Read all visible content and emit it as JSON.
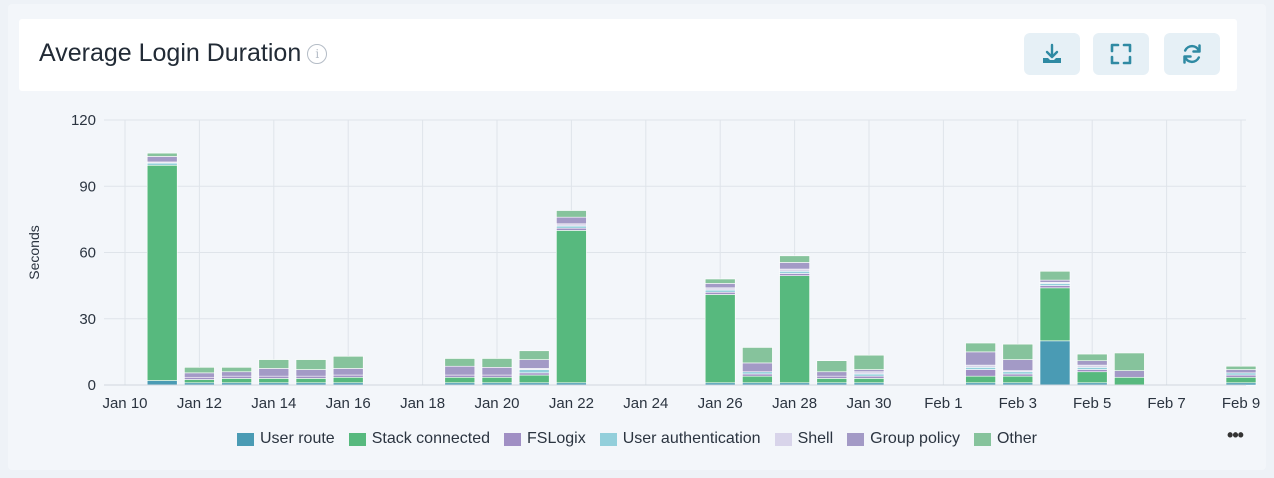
{
  "header": {
    "title": "Average Login Duration",
    "info_icon": "info-icon",
    "buttons": [
      {
        "name": "download-button",
        "icon": "download-icon"
      },
      {
        "name": "fullscreen-button",
        "icon": "expand-icon"
      },
      {
        "name": "refresh-button",
        "icon": "refresh-icon"
      }
    ]
  },
  "legend_more": "•••",
  "chart_data": {
    "type": "bar",
    "stacked": true,
    "ylabel": "Seconds",
    "ylim": [
      0,
      120
    ],
    "yticks": [
      0,
      30,
      60,
      90,
      120
    ],
    "grid": true,
    "legend_position": "bottom",
    "x_tick_labels": [
      "Jan 10",
      "Jan 12",
      "Jan 14",
      "Jan 16",
      "Jan 18",
      "Jan 20",
      "Jan 22",
      "Jan 24",
      "Jan 26",
      "Jan 28",
      "Jan 30",
      "Feb 1",
      "Feb 3",
      "Feb 5",
      "Feb 7",
      "Feb 9"
    ],
    "categories": [
      "Jan 10",
      "Jan 11",
      "Jan 12",
      "Jan 13",
      "Jan 14",
      "Jan 15",
      "Jan 16",
      "Jan 17",
      "Jan 18",
      "Jan 19",
      "Jan 20",
      "Jan 21",
      "Jan 22",
      "Jan 23",
      "Jan 24",
      "Jan 25",
      "Jan 26",
      "Jan 27",
      "Jan 28",
      "Jan 29",
      "Jan 30",
      "Jan 31",
      "Feb 1",
      "Feb 2",
      "Feb 3",
      "Feb 4",
      "Feb 5",
      "Feb 6",
      "Feb 7",
      "Feb 8",
      "Feb 9"
    ],
    "series": [
      {
        "name": "User route",
        "color": "#4a9bb4",
        "values": [
          0,
          2,
          1,
          1,
          1,
          1,
          1,
          0,
          0,
          1,
          1,
          1,
          1,
          0,
          0,
          0,
          1,
          1,
          1,
          1,
          1,
          0,
          0,
          1,
          1,
          20,
          1,
          0,
          0,
          0,
          1
        ]
      },
      {
        "name": "Stack connected",
        "color": "#57b97e",
        "values": [
          0,
          97.5,
          1.5,
          2,
          2,
          2,
          2.5,
          0,
          0,
          2.5,
          2.5,
          3.5,
          69,
          0,
          0,
          0,
          40,
          3,
          48.5,
          2,
          2,
          0,
          0,
          3,
          3,
          24,
          5,
          3.5,
          0,
          0,
          2.5
        ]
      },
      {
        "name": "FSLogix",
        "color": "#a08fc4",
        "values": [
          0,
          0,
          1,
          1,
          1,
          1,
          1,
          0,
          0,
          1,
          1,
          1,
          1,
          0,
          0,
          0,
          1,
          1,
          1,
          1,
          1,
          0,
          0,
          3,
          1,
          1,
          1,
          0,
          0,
          0,
          1
        ]
      },
      {
        "name": "User authentication",
        "color": "#93cfdb",
        "values": [
          0,
          1,
          0,
          0,
          0,
          0,
          0,
          0,
          0,
          0,
          0,
          1.5,
          1,
          0,
          0,
          0,
          1,
          1,
          1,
          0,
          1,
          0,
          0,
          1,
          1,
          1,
          1,
          0,
          0,
          0,
          1
        ]
      },
      {
        "name": "Shell",
        "color": "#d8d4ea",
        "values": [
          0,
          0.5,
          0,
          0,
          0,
          0,
          0,
          0,
          0,
          0,
          0,
          0.5,
          1,
          0,
          0,
          0,
          1,
          0,
          1,
          0,
          1,
          0,
          0,
          1,
          0.5,
          0.5,
          1,
          0,
          0,
          0,
          0
        ]
      },
      {
        "name": "Group policy",
        "color": "#a39ac6",
        "values": [
          0,
          2.5,
          2,
          2,
          3.5,
          3,
          3,
          0,
          0,
          4,
          3.5,
          4,
          3,
          0,
          0,
          0,
          2,
          4,
          3,
          2,
          1,
          0,
          0,
          6,
          5,
          1,
          2,
          3,
          0,
          0,
          1.5
        ]
      },
      {
        "name": "Other",
        "color": "#86c39c",
        "values": [
          0,
          1.5,
          2.5,
          2,
          4,
          4.5,
          5.5,
          0,
          0,
          3.5,
          4,
          4,
          3,
          0,
          0,
          0,
          2,
          7,
          3,
          5,
          6.5,
          0,
          0,
          4,
          7,
          4,
          3,
          8,
          0,
          0,
          1.5
        ]
      }
    ]
  }
}
